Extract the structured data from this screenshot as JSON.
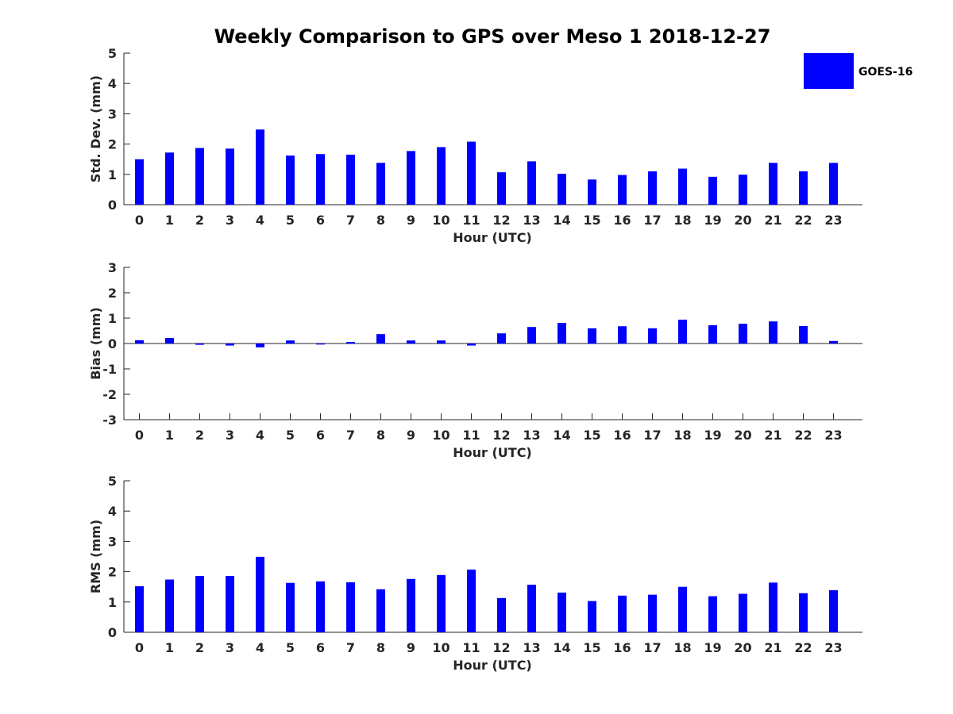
{
  "title": "Weekly Comparison to GPS over Meso 1 2018-12-27",
  "legend": {
    "label": "GOES-16",
    "color": "#0000ff",
    "placement": "top-right"
  },
  "chart_data": [
    {
      "type": "bar",
      "xlabel": "Hour (UTC)",
      "ylabel": "Std. Dev. (mm)",
      "ylim": [
        0,
        5
      ],
      "yticks": [
        "0",
        "1",
        "2",
        "3",
        "4",
        "5"
      ],
      "categories": [
        "0",
        "1",
        "2",
        "3",
        "4",
        "5",
        "6",
        "7",
        "8",
        "9",
        "10",
        "11",
        "12",
        "13",
        "14",
        "15",
        "16",
        "17",
        "18",
        "19",
        "20",
        "21",
        "22",
        "23"
      ],
      "series": [
        {
          "name": "GOES-16",
          "values": [
            1.5,
            1.72,
            1.87,
            1.85,
            2.48,
            1.62,
            1.67,
            1.65,
            1.38,
            1.77,
            1.9,
            2.08,
            1.07,
            1.43,
            1.02,
            0.83,
            0.98,
            1.1,
            1.19,
            0.92,
            0.99,
            1.38,
            1.1,
            1.38
          ]
        }
      ]
    },
    {
      "type": "bar",
      "xlabel": "Hour (UTC)",
      "ylabel": "Bias (mm)",
      "ylim": [
        -3,
        3
      ],
      "yticks": [
        "-3",
        "-2",
        "-1",
        "0",
        "1",
        "2",
        "3"
      ],
      "categories": [
        "0",
        "1",
        "2",
        "3",
        "4",
        "5",
        "6",
        "7",
        "8",
        "9",
        "10",
        "11",
        "12",
        "13",
        "14",
        "15",
        "16",
        "17",
        "18",
        "19",
        "20",
        "21",
        "22",
        "23"
      ],
      "series": [
        {
          "name": "GOES-16",
          "values": [
            0.13,
            0.22,
            -0.05,
            -0.08,
            -0.15,
            0.12,
            -0.04,
            0.06,
            0.37,
            0.12,
            0.12,
            -0.08,
            0.4,
            0.65,
            0.81,
            0.6,
            0.68,
            0.6,
            0.94,
            0.72,
            0.78,
            0.87,
            0.69,
            0.1
          ]
        }
      ]
    },
    {
      "type": "bar",
      "xlabel": "Hour (UTC)",
      "ylabel": "RMS (mm)",
      "ylim": [
        0,
        5
      ],
      "yticks": [
        "0",
        "1",
        "2",
        "3",
        "4",
        "5"
      ],
      "categories": [
        "0",
        "1",
        "2",
        "3",
        "4",
        "5",
        "6",
        "7",
        "8",
        "9",
        "10",
        "11",
        "12",
        "13",
        "14",
        "15",
        "16",
        "17",
        "18",
        "19",
        "20",
        "21",
        "22",
        "23"
      ],
      "series": [
        {
          "name": "GOES-16",
          "values": [
            1.52,
            1.74,
            1.86,
            1.86,
            2.49,
            1.63,
            1.68,
            1.65,
            1.42,
            1.76,
            1.89,
            2.07,
            1.13,
            1.57,
            1.31,
            1.03,
            1.21,
            1.24,
            1.5,
            1.19,
            1.27,
            1.64,
            1.29,
            1.39
          ]
        }
      ]
    }
  ]
}
